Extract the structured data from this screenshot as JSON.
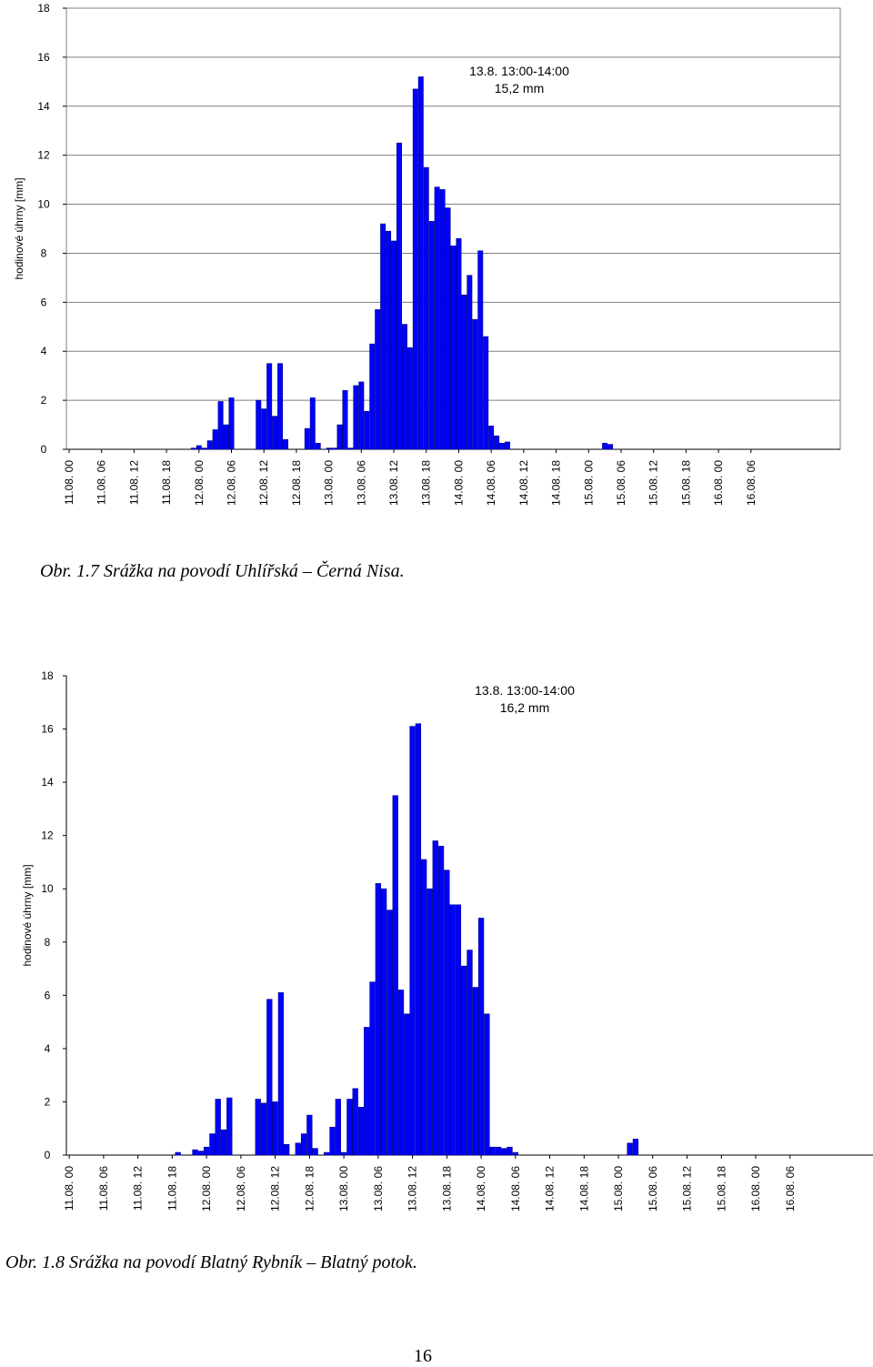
{
  "charts": [
    {
      "ylabel": "hodinové úhrny [mm]",
      "ylim": [
        0,
        18
      ],
      "yticks": [
        0,
        2,
        4,
        6,
        8,
        10,
        12,
        14,
        16,
        18
      ],
      "xtick_labels": [
        "11.08. 00",
        "11.08. 06",
        "11.08. 12",
        "11.08. 18",
        "12.08. 00",
        "12.08. 06",
        "12.08. 12",
        "12.08. 18",
        "13.08. 00",
        "13.08. 06",
        "13.08. 12",
        "13.08. 18",
        "14.08. 00",
        "14.08. 06",
        "14.08. 12",
        "14.08. 18",
        "15.08. 00",
        "15.08. 06",
        "15.08. 12",
        "15.08. 18",
        "16.08. 00",
        "16.08. 06"
      ],
      "annotation": [
        "13.8. 13:00-14:00",
        "15,2 mm"
      ],
      "caption": "Obr. 1.7 Srážka na povodí Uhlířská – Černá Nisa."
    },
    {
      "ylabel": "hodinové úhrny [mm]",
      "ylim": [
        0,
        18
      ],
      "yticks": [
        0,
        2,
        4,
        6,
        8,
        10,
        12,
        14,
        16,
        18
      ],
      "xtick_labels": [
        "11.08. 00",
        "11.08. 06",
        "11.08. 12",
        "11.08. 18",
        "12.08. 00",
        "12.08. 06",
        "12.08. 12",
        "12.08. 18",
        "13.08. 00",
        "13.08. 06",
        "13.08. 12",
        "13.08. 18",
        "14.08. 00",
        "14.08. 06",
        "14.08. 12",
        "14.08. 18",
        "15.08. 00",
        "15.08. 06",
        "15.08. 12",
        "15.08. 18",
        "16.08. 00",
        "16.08. 06"
      ],
      "annotation": [
        "13.8. 13:00-14:00",
        "16,2 mm"
      ],
      "caption": "Obr. 1.8 Srážka na povodí Blatný Rybník – Blatný potok."
    }
  ],
  "page_number": "16",
  "colors": {
    "bar": "#0000ff",
    "bar_outline": "#000080",
    "grid": "#808080"
  },
  "chart_data": [
    {
      "type": "bar",
      "title": "",
      "xlabel": "",
      "ylabel": "hodinové úhrny [mm]",
      "ylim": [
        0,
        18
      ],
      "grid": "horizontal",
      "x_start": "11.08. 00",
      "x_step_hours": 1,
      "values": [
        0,
        0,
        0,
        0,
        0,
        0,
        0,
        0,
        0,
        0,
        0,
        0,
        0,
        0,
        0,
        0,
        0,
        0,
        0,
        0,
        0,
        0,
        0,
        0.05,
        0.15,
        0.05,
        0.35,
        0.8,
        1.95,
        1.0,
        2.1,
        0,
        0,
        0,
        0,
        2.0,
        1.65,
        3.5,
        1.35,
        3.5,
        0.4,
        0,
        0,
        0,
        0.85,
        2.1,
        0.25,
        0,
        0.05,
        0.05,
        1.0,
        2.4,
        0.05,
        2.6,
        2.75,
        1.55,
        4.3,
        5.7,
        9.2,
        8.9,
        8.5,
        12.5,
        5.1,
        4.15,
        14.7,
        15.2,
        11.5,
        9.3,
        10.7,
        10.6,
        9.85,
        8.3,
        8.6,
        6.3,
        7.1,
        5.3,
        8.1,
        4.6,
        0.95,
        0.55,
        0.25,
        0.3,
        0,
        0,
        0,
        0,
        0,
        0,
        0,
        0,
        0,
        0,
        0,
        0,
        0,
        0,
        0,
        0,
        0,
        0.25,
        0.2,
        0,
        0,
        0,
        0,
        0,
        0,
        0,
        0,
        0,
        0,
        0,
        0,
        0,
        0,
        0,
        0,
        0,
        0,
        0,
        0,
        0,
        0,
        0,
        0,
        0,
        0,
        0,
        0,
        0,
        0,
        0,
        0,
        0,
        0,
        0,
        0,
        0,
        0,
        0,
        0,
        0,
        0
      ]
    },
    {
      "type": "bar",
      "title": "",
      "xlabel": "",
      "ylabel": "hodinové úhrny [mm]",
      "ylim": [
        0,
        18
      ],
      "grid": "none",
      "x_start": "11.08. 00",
      "x_step_hours": 1,
      "values": [
        0,
        0,
        0,
        0,
        0,
        0,
        0,
        0,
        0,
        0,
        0,
        0,
        0,
        0,
        0,
        0,
        0,
        0,
        0,
        0.1,
        0,
        0,
        0.2,
        0.15,
        0.3,
        0.8,
        2.1,
        0.95,
        2.15,
        0,
        0,
        0,
        0,
        2.1,
        1.95,
        5.85,
        2.0,
        6.1,
        0.4,
        0,
        0.45,
        0.8,
        1.5,
        0.25,
        0,
        0.1,
        1.05,
        2.1,
        0.1,
        2.1,
        2.5,
        1.8,
        4.8,
        6.5,
        10.2,
        10.0,
        9.2,
        13.5,
        6.2,
        5.3,
        16.1,
        16.2,
        11.1,
        10.0,
        11.8,
        11.6,
        10.7,
        9.4,
        9.4,
        7.1,
        7.7,
        6.3,
        8.9,
        5.3,
        0.3,
        0.3,
        0.25,
        0.3,
        0.1,
        0,
        0,
        0,
        0,
        0,
        0,
        0,
        0,
        0,
        0,
        0,
        0,
        0,
        0,
        0,
        0,
        0,
        0,
        0,
        0.45,
        0.6,
        0,
        0,
        0,
        0,
        0,
        0,
        0,
        0,
        0,
        0,
        0,
        0,
        0,
        0,
        0,
        0,
        0,
        0,
        0,
        0,
        0,
        0,
        0,
        0,
        0,
        0,
        0,
        0,
        0,
        0,
        0,
        0,
        0,
        0,
        0,
        0,
        0,
        0,
        0,
        0,
        0
      ]
    }
  ]
}
